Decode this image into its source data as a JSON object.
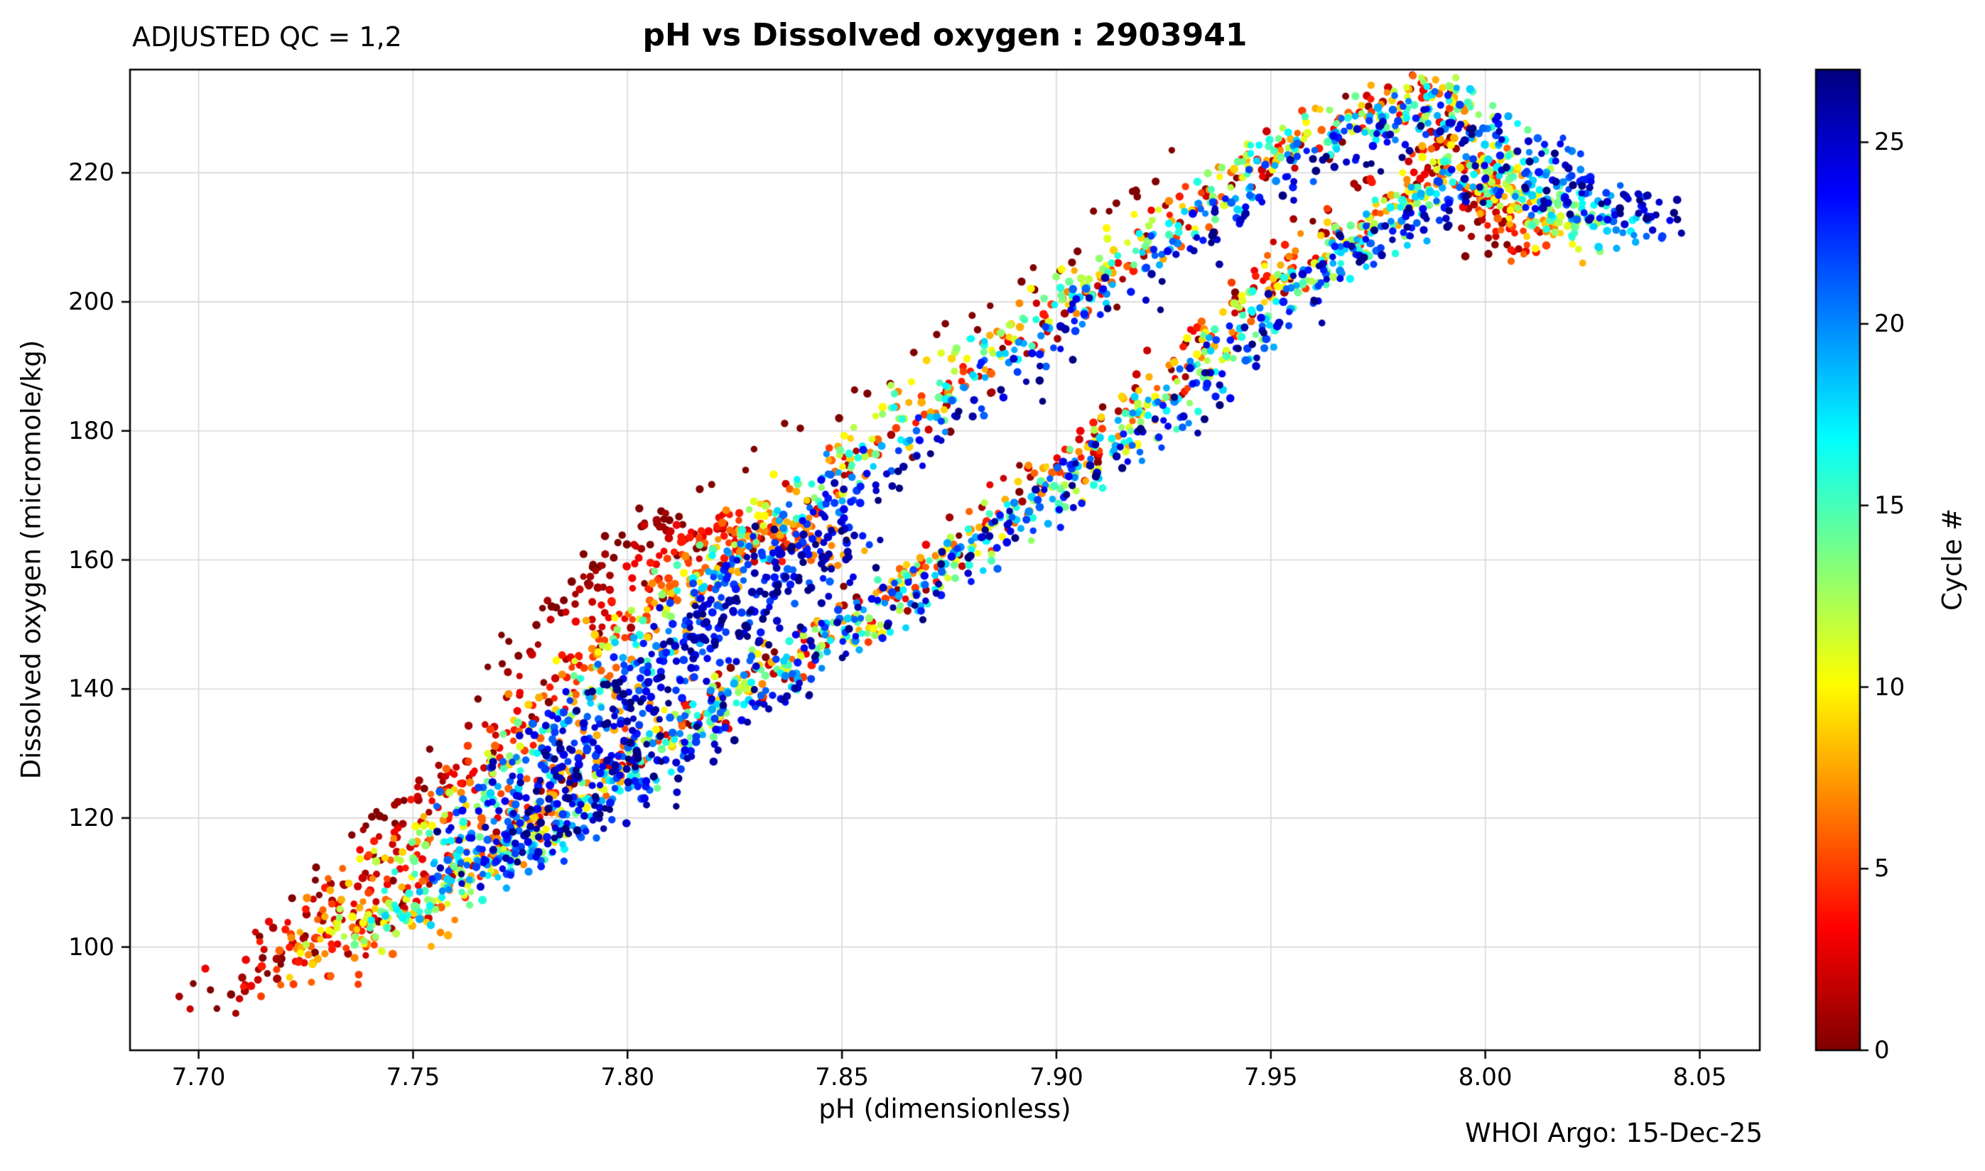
{
  "figure": {
    "qc_label": "ADJUSTED QC = 1,2",
    "title": "pH vs Dissolved oxygen : 2903941",
    "footer": "WHOI Argo: 15-Dec-25"
  },
  "chart_data": {
    "type": "scatter",
    "title": "pH vs Dissolved oxygen : 2903941",
    "qc_annotation": "ADJUSTED QC = 1,2",
    "credit": "WHOI Argo: 15-Dec-25",
    "xlabel": "pH  (dimensionless)",
    "ylabel": "Dissolved oxygen  (micromole/kg)",
    "xlim": [
      7.684,
      8.064
    ],
    "ylim": [
      84,
      236
    ],
    "grid": true,
    "grid_color": "#d9d9d9",
    "x_ticks": [
      7.7,
      7.75,
      7.8,
      7.85,
      7.9,
      7.95,
      8.0,
      8.05
    ],
    "x_tick_labels": [
      "7.70",
      "7.75",
      "7.80",
      "7.85",
      "7.90",
      "7.95",
      "8.00",
      "8.05"
    ],
    "y_ticks": [
      100,
      120,
      140,
      160,
      180,
      200,
      220
    ],
    "y_tick_labels": [
      "100",
      "120",
      "140",
      "160",
      "180",
      "200",
      "220"
    ],
    "colorbar": {
      "label": "Cycle #",
      "min": 0,
      "max": 27,
      "ticks": [
        0,
        5,
        10,
        15,
        20,
        25
      ],
      "tick_labels": [
        "0",
        "5",
        "10",
        "15",
        "20",
        "25"
      ],
      "colormap": "jet-reversed (cycle 0 = dark red at bottom, cycle 27 = dark navy at top)",
      "color_cycle0": "#7f0000",
      "color_cycle27": "#00007f"
    },
    "series_model": {
      "cycle_first": 0,
      "cycle_last": 27,
      "profile_anchors_cycle0": [
        [
          7.7,
          90
        ],
        [
          7.745,
          108
        ],
        [
          7.79,
          130
        ],
        [
          7.845,
          152
        ],
        [
          7.9,
          178
        ],
        [
          7.945,
          205
        ],
        [
          7.99,
          226
        ],
        [
          8.005,
          207
        ]
      ],
      "profile_anchors_cycle27": [
        [
          7.775,
          114
        ],
        [
          7.805,
          126
        ],
        [
          7.84,
          146
        ],
        [
          7.885,
          166
        ],
        [
          7.93,
          188
        ],
        [
          7.97,
          210
        ],
        [
          8.002,
          220
        ],
        [
          8.05,
          213
        ]
      ],
      "loop_width_o2": [
        16,
        22
      ],
      "points_lower_limb": 62,
      "points_upper_limb": 50,
      "jitter_ph": 0.006,
      "jitter_o2": 3.5,
      "ridge_cycles_max": 8,
      "ridge_anchors": [
        [
          7.712,
          96
        ],
        [
          7.742,
          120
        ],
        [
          7.764,
          139
        ],
        [
          7.783,
          154
        ],
        [
          7.796,
          163
        ],
        [
          7.807,
          166
        ],
        [
          7.819,
          161
        ]
      ],
      "ridge_ph_shift_per_cycle": 0.0045,
      "ridge_points": 42,
      "blob_cycles_min": 21,
      "blob_line": [
        [
          7.762,
          116
        ],
        [
          7.852,
          166
        ]
      ],
      "blob_points": 55,
      "cycle0_upper_branch": [
        [
          7.778,
          150
        ],
        [
          7.802,
          164
        ],
        [
          7.836,
          179
        ],
        [
          7.869,
          192
        ],
        [
          7.894,
          204
        ],
        [
          7.913,
          214
        ],
        [
          7.924,
          221
        ]
      ],
      "cycle0_upper_points": 40
    }
  }
}
